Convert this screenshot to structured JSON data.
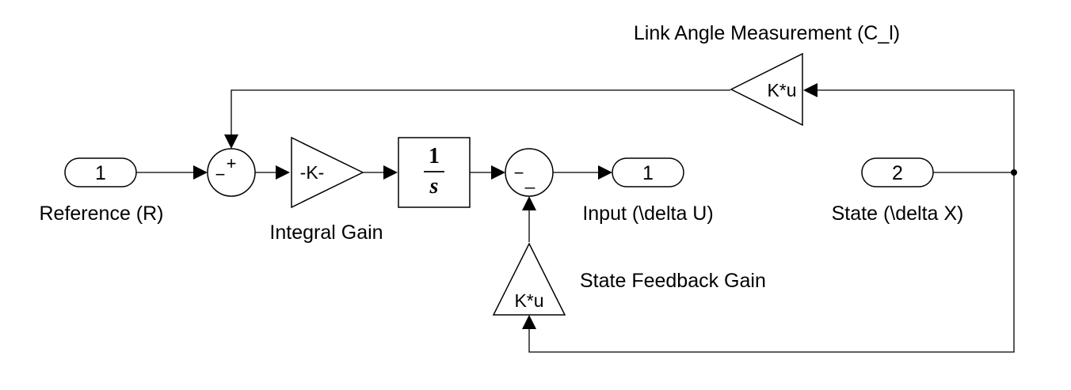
{
  "diagram": {
    "inport_reference": {
      "number": "1",
      "label": "Reference (R)"
    },
    "inport_state": {
      "number": "2",
      "label": "State (\\delta X)"
    },
    "outport_input": {
      "number": "1",
      "label": "Input (\\delta U)"
    },
    "sum_error": {
      "signs": [
        "+",
        "−"
      ]
    },
    "sum_output": {
      "signs": [
        "−",
        "_"
      ]
    },
    "integral_gain": {
      "text": "-K-",
      "label": "Integral Gain"
    },
    "integrator": {
      "numerator": "1",
      "denominator": "s"
    },
    "state_feedback_gain": {
      "text": "K*u",
      "label": "State Feedback Gain"
    },
    "link_angle_gain": {
      "text": "K*u",
      "label": "Link Angle Measurement (C_l)"
    }
  }
}
